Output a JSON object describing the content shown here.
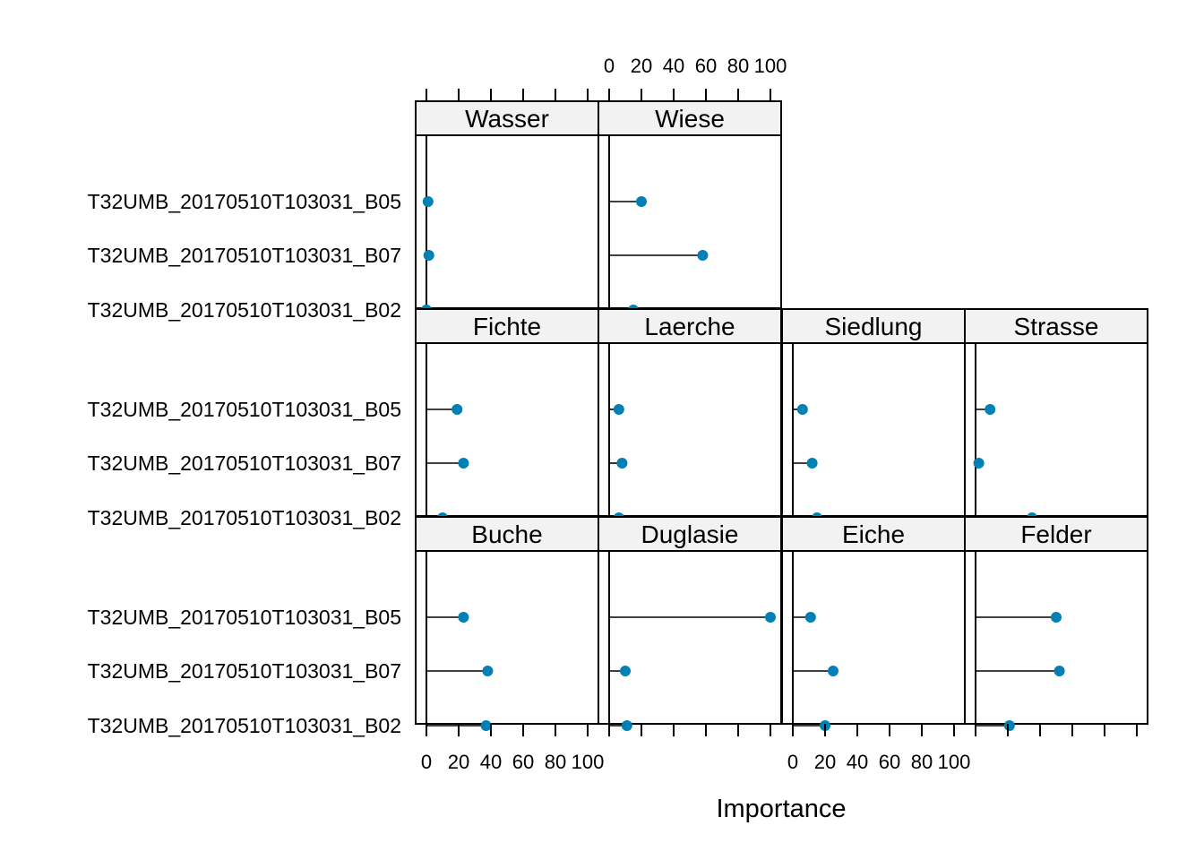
{
  "chart_data": {
    "type": "dot",
    "xlabel": "Importance",
    "xlim": [
      0,
      100
    ],
    "xticks": [
      0,
      20,
      40,
      60,
      80,
      100
    ],
    "categories": [
      "T32UMB_20170510T103031_B05",
      "T32UMB_20170510T103031_B07",
      "T32UMB_20170510T103031_B02"
    ],
    "point_color": "#0080b5",
    "panels": [
      {
        "name": "Wasser",
        "values": [
          1,
          1.5,
          0
        ]
      },
      {
        "name": "Wiese",
        "values": [
          20,
          58,
          15
        ]
      },
      {
        "name": "Fichte",
        "values": [
          19,
          23,
          10
        ]
      },
      {
        "name": "Laerche",
        "values": [
          6,
          8,
          6
        ]
      },
      {
        "name": "Siedlung",
        "values": [
          6,
          12,
          15
        ]
      },
      {
        "name": "Strasse",
        "values": [
          9,
          2,
          35
        ]
      },
      {
        "name": "Buche",
        "values": [
          23,
          38,
          37
        ]
      },
      {
        "name": "Duglasie",
        "values": [
          100,
          10,
          11
        ]
      },
      {
        "name": "Eiche",
        "values": [
          11,
          25,
          20
        ]
      },
      {
        "name": "Felder",
        "values": [
          50,
          52,
          21
        ]
      }
    ]
  }
}
